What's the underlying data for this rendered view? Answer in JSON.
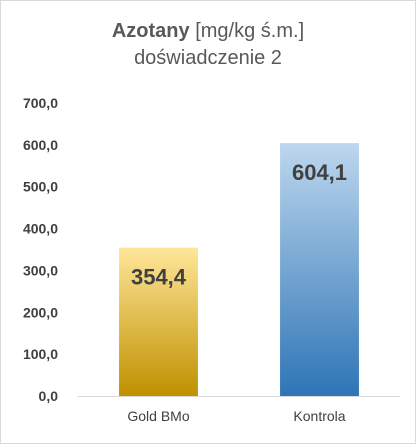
{
  "chart_data": {
    "type": "bar",
    "title_bold": "Azotany",
    "title_rest": " [mg/kg ś.m.]",
    "subtitle": "doświadczenie 2",
    "categories": [
      "Gold BMo",
      "Kontrola"
    ],
    "values": [
      354.4,
      604.1
    ],
    "value_labels": [
      "354,4",
      "604,1"
    ],
    "ylim": [
      0,
      700
    ],
    "yticks": [
      "0,0",
      "100,0",
      "200,0",
      "300,0",
      "400,0",
      "500,0",
      "600,0",
      "700,0"
    ],
    "grid": false,
    "legend": "none",
    "colors": {
      "gold_top": "#ffe699",
      "gold_bottom": "#bf9000",
      "blue_top": "#bdd7ee",
      "blue_bottom": "#2e75b6"
    }
  }
}
